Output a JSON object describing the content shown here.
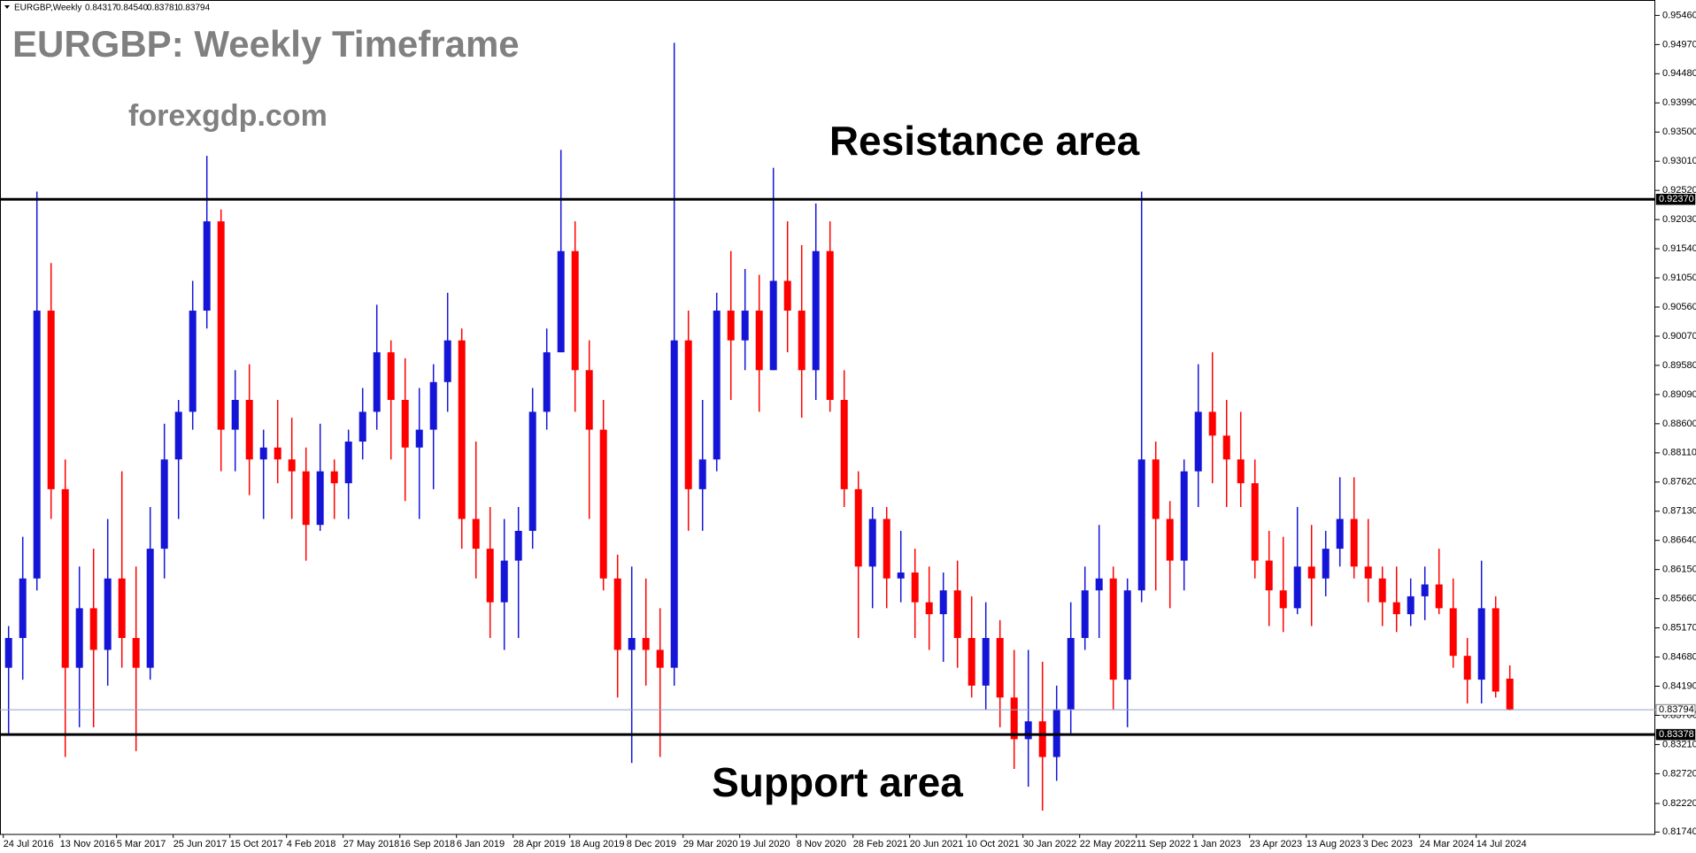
{
  "chart_data": {
    "type": "candlestick",
    "header": {
      "symbol": "EURGBP,Weekly",
      "values": [
        "0.84317",
        "0.84540",
        "0.83781",
        "0.83794"
      ]
    },
    "title": "EURGBP: Weekly Timeframe",
    "subtitle": "forexgdp.com",
    "annotations": [
      "Resistance area",
      "Support area"
    ],
    "up_color": "#1515d8",
    "down_color": "#ff0000",
    "grid": false,
    "ylim": [
      0.817,
      0.9557
    ],
    "yticks": [
      {
        "value": 0.9546,
        "label": "0.95460"
      },
      {
        "value": 0.9497,
        "label": "0.94970"
      },
      {
        "value": 0.9448,
        "label": "0.94480"
      },
      {
        "value": 0.9399,
        "label": "0.93990"
      },
      {
        "value": 0.935,
        "label": "0.93500"
      },
      {
        "value": 0.9301,
        "label": "0.93010"
      },
      {
        "value": 0.9252,
        "label": "0.92520"
      },
      {
        "value": 0.9203,
        "label": "0.92030"
      },
      {
        "value": 0.9154,
        "label": "0.91540"
      },
      {
        "value": 0.9105,
        "label": "0.91050"
      },
      {
        "value": 0.9056,
        "label": "0.90560"
      },
      {
        "value": 0.9007,
        "label": "0.90070"
      },
      {
        "value": 0.8958,
        "label": "0.89580"
      },
      {
        "value": 0.8909,
        "label": "0.89090"
      },
      {
        "value": 0.886,
        "label": "0.88600"
      },
      {
        "value": 0.8811,
        "label": "0.88110"
      },
      {
        "value": 0.8762,
        "label": "0.87620"
      },
      {
        "value": 0.8713,
        "label": "0.87130"
      },
      {
        "value": 0.8664,
        "label": "0.86640"
      },
      {
        "value": 0.8615,
        "label": "0.86150"
      },
      {
        "value": 0.8566,
        "label": "0.85660"
      },
      {
        "value": 0.8517,
        "label": "0.85170"
      },
      {
        "value": 0.8468,
        "label": "0.84680"
      },
      {
        "value": 0.8419,
        "label": "0.84190"
      },
      {
        "value": 0.837,
        "label": "0.83700"
      },
      {
        "value": 0.8321,
        "label": "0.83210"
      },
      {
        "value": 0.8272,
        "label": "0.82720"
      },
      {
        "value": 0.8222,
        "label": "0.82220"
      },
      {
        "value": 0.8174,
        "label": "0.81740"
      }
    ],
    "resistance_level": {
      "value": 0.9237,
      "label": "0.92370"
    },
    "last_price": {
      "value": 0.83794,
      "label": "0.83794"
    },
    "support_level": {
      "value": 0.83378,
      "label": "0.83378"
    },
    "categories": [
      "24 Jul 2016",
      null,
      null,
      null,
      "13 Nov 2016",
      null,
      null,
      null,
      "5 Mar 2017",
      null,
      null,
      null,
      "25 Jun 2017",
      null,
      null,
      null,
      "15 Oct 2017",
      null,
      null,
      null,
      "4 Feb 2018",
      null,
      null,
      null,
      "27 May 2018",
      null,
      null,
      null,
      "16 Sep 2018",
      null,
      null,
      null,
      "6 Jan 2019",
      null,
      null,
      null,
      "28 Apr 2019",
      null,
      null,
      null,
      "18 Aug 2019",
      null,
      null,
      null,
      "8 Dec 2019",
      null,
      null,
      null,
      "29 Mar 2020",
      null,
      null,
      null,
      "19 Jul 2020",
      null,
      null,
      null,
      "8 Nov 2020",
      null,
      null,
      null,
      "28 Feb 2021",
      null,
      null,
      null,
      "20 Jun 2021",
      null,
      null,
      null,
      "10 Oct 2021",
      null,
      null,
      null,
      "30 Jan 2022",
      null,
      null,
      null,
      "22 May 2022",
      null,
      null,
      null,
      "11 Sep 2022",
      null,
      null,
      null,
      "1 Jan 2023",
      null,
      null,
      null,
      "23 Apr 2023",
      null,
      null,
      null,
      "13 Aug 2023",
      null,
      null,
      null,
      "3 Dec 2023",
      null,
      null,
      null,
      "24 Mar 2024",
      null,
      null,
      null,
      "14 Jul 2024",
      null,
      null
    ],
    "ohlc": [
      [
        0.845,
        0.852,
        0.834,
        0.85
      ],
      [
        0.85,
        0.867,
        0.843,
        0.86
      ],
      [
        0.86,
        0.925,
        0.858,
        0.905
      ],
      [
        0.905,
        0.913,
        0.87,
        0.875
      ],
      [
        0.875,
        0.88,
        0.83,
        0.845
      ],
      [
        0.845,
        0.862,
        0.835,
        0.855
      ],
      [
        0.855,
        0.865,
        0.835,
        0.848
      ],
      [
        0.848,
        0.87,
        0.842,
        0.86
      ],
      [
        0.86,
        0.878,
        0.845,
        0.85
      ],
      [
        0.85,
        0.862,
        0.831,
        0.845
      ],
      [
        0.845,
        0.872,
        0.843,
        0.865
      ],
      [
        0.865,
        0.886,
        0.86,
        0.88
      ],
      [
        0.88,
        0.89,
        0.87,
        0.888
      ],
      [
        0.888,
        0.91,
        0.885,
        0.905
      ],
      [
        0.905,
        0.931,
        0.902,
        0.92
      ],
      [
        0.92,
        0.922,
        0.878,
        0.885
      ],
      [
        0.885,
        0.895,
        0.878,
        0.89
      ],
      [
        0.89,
        0.896,
        0.874,
        0.88
      ],
      [
        0.88,
        0.885,
        0.87,
        0.882
      ],
      [
        0.882,
        0.89,
        0.876,
        0.88
      ],
      [
        0.88,
        0.887,
        0.87,
        0.878
      ],
      [
        0.878,
        0.882,
        0.863,
        0.869
      ],
      [
        0.869,
        0.886,
        0.868,
        0.878
      ],
      [
        0.878,
        0.88,
        0.87,
        0.876
      ],
      [
        0.876,
        0.885,
        0.87,
        0.883
      ],
      [
        0.883,
        0.892,
        0.88,
        0.888
      ],
      [
        0.888,
        0.906,
        0.885,
        0.898
      ],
      [
        0.898,
        0.9,
        0.88,
        0.89
      ],
      [
        0.89,
        0.897,
        0.873,
        0.882
      ],
      [
        0.882,
        0.892,
        0.87,
        0.885
      ],
      [
        0.885,
        0.896,
        0.875,
        0.893
      ],
      [
        0.893,
        0.908,
        0.888,
        0.9
      ],
      [
        0.9,
        0.902,
        0.865,
        0.87
      ],
      [
        0.87,
        0.883,
        0.86,
        0.865
      ],
      [
        0.865,
        0.872,
        0.85,
        0.856
      ],
      [
        0.856,
        0.87,
        0.848,
        0.863
      ],
      [
        0.863,
        0.872,
        0.85,
        0.868
      ],
      [
        0.868,
        0.892,
        0.865,
        0.888
      ],
      [
        0.888,
        0.902,
        0.885,
        0.898
      ],
      [
        0.898,
        0.932,
        0.898,
        0.915
      ],
      [
        0.915,
        0.92,
        0.888,
        0.895
      ],
      [
        0.895,
        0.9,
        0.87,
        0.885
      ],
      [
        0.885,
        0.89,
        0.858,
        0.86
      ],
      [
        0.86,
        0.864,
        0.84,
        0.848
      ],
      [
        0.848,
        0.862,
        0.829,
        0.85
      ],
      [
        0.85,
        0.86,
        0.842,
        0.848
      ],
      [
        0.848,
        0.855,
        0.83,
        0.845
      ],
      [
        0.845,
        0.95,
        0.842,
        0.9
      ],
      [
        0.9,
        0.905,
        0.868,
        0.875
      ],
      [
        0.875,
        0.89,
        0.868,
        0.88
      ],
      [
        0.88,
        0.908,
        0.878,
        0.905
      ],
      [
        0.905,
        0.915,
        0.89,
        0.9
      ],
      [
        0.9,
        0.912,
        0.895,
        0.905
      ],
      [
        0.905,
        0.911,
        0.888,
        0.895
      ],
      [
        0.895,
        0.929,
        0.895,
        0.91
      ],
      [
        0.91,
        0.92,
        0.898,
        0.905
      ],
      [
        0.905,
        0.916,
        0.887,
        0.895
      ],
      [
        0.895,
        0.923,
        0.89,
        0.915
      ],
      [
        0.915,
        0.92,
        0.888,
        0.89
      ],
      [
        0.89,
        0.895,
        0.872,
        0.875
      ],
      [
        0.875,
        0.878,
        0.85,
        0.862
      ],
      [
        0.862,
        0.872,
        0.855,
        0.87
      ],
      [
        0.87,
        0.872,
        0.855,
        0.86
      ],
      [
        0.86,
        0.868,
        0.856,
        0.861
      ],
      [
        0.861,
        0.865,
        0.85,
        0.856
      ],
      [
        0.856,
        0.862,
        0.848,
        0.854
      ],
      [
        0.854,
        0.861,
        0.846,
        0.858
      ],
      [
        0.858,
        0.863,
        0.845,
        0.85
      ],
      [
        0.85,
        0.857,
        0.84,
        0.842
      ],
      [
        0.842,
        0.856,
        0.838,
        0.85
      ],
      [
        0.85,
        0.853,
        0.835,
        0.84
      ],
      [
        0.84,
        0.848,
        0.828,
        0.833
      ],
      [
        0.833,
        0.848,
        0.825,
        0.836
      ],
      [
        0.836,
        0.846,
        0.821,
        0.83
      ],
      [
        0.83,
        0.842,
        0.826,
        0.838
      ],
      [
        0.838,
        0.856,
        0.834,
        0.85
      ],
      [
        0.85,
        0.862,
        0.848,
        0.858
      ],
      [
        0.858,
        0.869,
        0.85,
        0.86
      ],
      [
        0.86,
        0.862,
        0.838,
        0.843
      ],
      [
        0.843,
        0.86,
        0.835,
        0.858
      ],
      [
        0.858,
        0.925,
        0.856,
        0.88
      ],
      [
        0.88,
        0.883,
        0.858,
        0.87
      ],
      [
        0.87,
        0.873,
        0.855,
        0.863
      ],
      [
        0.863,
        0.88,
        0.858,
        0.878
      ],
      [
        0.878,
        0.896,
        0.872,
        0.888
      ],
      [
        0.888,
        0.898,
        0.876,
        0.884
      ],
      [
        0.884,
        0.89,
        0.872,
        0.88
      ],
      [
        0.88,
        0.888,
        0.872,
        0.876
      ],
      [
        0.876,
        0.88,
        0.86,
        0.863
      ],
      [
        0.863,
        0.868,
        0.852,
        0.858
      ],
      [
        0.858,
        0.867,
        0.851,
        0.855
      ],
      [
        0.855,
        0.872,
        0.854,
        0.862
      ],
      [
        0.862,
        0.869,
        0.852,
        0.86
      ],
      [
        0.86,
        0.868,
        0.857,
        0.865
      ],
      [
        0.865,
        0.877,
        0.862,
        0.87
      ],
      [
        0.87,
        0.877,
        0.86,
        0.862
      ],
      [
        0.862,
        0.87,
        0.856,
        0.86
      ],
      [
        0.86,
        0.862,
        0.852,
        0.856
      ],
      [
        0.856,
        0.862,
        0.851,
        0.854
      ],
      [
        0.854,
        0.86,
        0.852,
        0.857
      ],
      [
        0.857,
        0.862,
        0.853,
        0.859
      ],
      [
        0.859,
        0.865,
        0.854,
        0.855
      ],
      [
        0.855,
        0.86,
        0.845,
        0.847
      ],
      [
        0.847,
        0.85,
        0.839,
        0.843
      ],
      [
        0.843,
        0.863,
        0.839,
        0.855
      ],
      [
        0.855,
        0.857,
        0.84,
        0.841
      ],
      [
        0.84317,
        0.8454,
        0.83781,
        0.83794
      ]
    ]
  }
}
